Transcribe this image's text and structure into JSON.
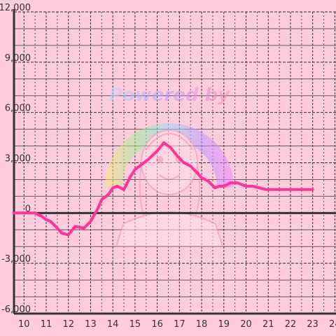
{
  "chart_data": {
    "type": "line",
    "title": "",
    "xlabel": "",
    "ylabel": "",
    "xlim": [
      9.55,
      24.05
    ],
    "ylim": [
      -6000,
      12000
    ],
    "x_ticks": [
      10,
      11,
      12,
      13,
      14,
      15,
      16,
      17,
      18,
      19,
      20,
      21,
      22,
      23,
      24
    ],
    "y_ticks": [
      -6000,
      -3000,
      0,
      3000,
      6000,
      9000,
      12000
    ],
    "x_tick_labels": [
      "10",
      "11",
      "12",
      "13",
      "14",
      "15",
      "16",
      "17",
      "18",
      "19",
      "20",
      "21",
      "22",
      "23",
      "24"
    ],
    "y_tick_labels": [
      "-6,000",
      "-3,000",
      "0",
      "3,000",
      "6,000",
      "9,000",
      "12,000"
    ],
    "grid": true,
    "series": [
      {
        "color": "#ff3399",
        "x": [
          9.55,
          10.0,
          10.5,
          10.8,
          11.0,
          11.2,
          11.5,
          11.7,
          12.0,
          12.3,
          12.7,
          13.0,
          13.3,
          13.5,
          13.8,
          14.0,
          14.2,
          14.5,
          14.8,
          15.0,
          15.3,
          15.6,
          16.0,
          16.3,
          16.6,
          16.9,
          17.2,
          17.5,
          17.8,
          18.0,
          18.3,
          18.6,
          18.8,
          19.0,
          19.3,
          19.6,
          19.8,
          20.0,
          20.3,
          20.6,
          20.9,
          21.5,
          22.0,
          22.5,
          23.0
        ]
      },
      {
        "y": [
          0,
          0,
          0,
          -200,
          -400,
          -500,
          -900,
          -1200,
          -1300,
          -800,
          -900,
          -500,
          200,
          800,
          1100,
          1500,
          1600,
          1400,
          2200,
          2600,
          2900,
          3200,
          3700,
          4200,
          3900,
          3400,
          3000,
          2800,
          2400,
          2100,
          1900,
          1500,
          1600,
          1600,
          1800,
          1800,
          1700,
          1600,
          1600,
          1500,
          1400,
          1400,
          1400,
          1400,
          1400
        ]
      }
    ]
  },
  "watermark": {
    "text": "Powered by"
  },
  "colors": {
    "background": "#ffccdd",
    "grid": "#333333",
    "axis": "#333333",
    "line": "#ff3399"
  }
}
